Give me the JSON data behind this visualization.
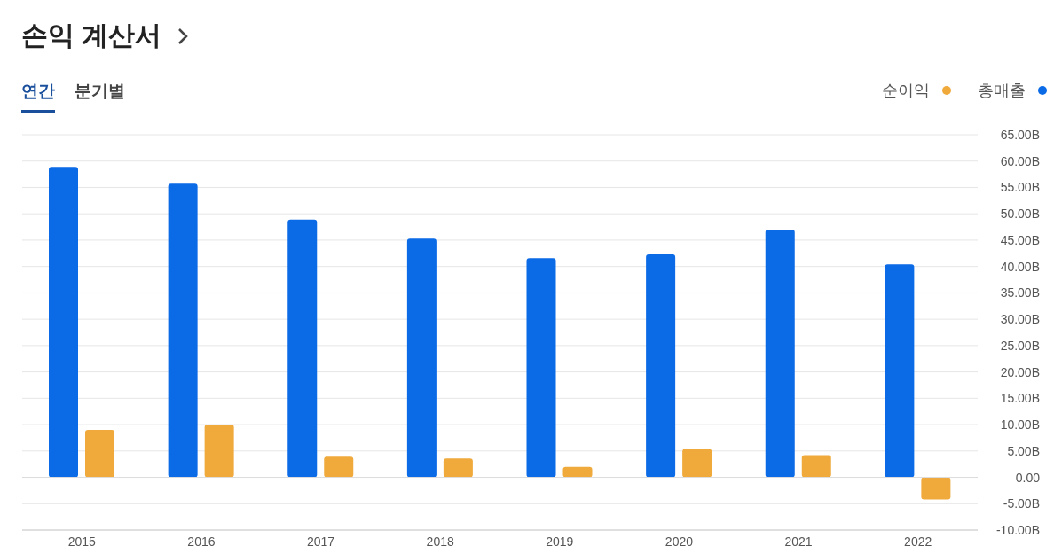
{
  "chart_data": {
    "type": "bar",
    "title": "손익 계산서",
    "annotations": [
      "연간",
      "분기별"
    ],
    "categories": [
      "2015",
      "2016",
      "2017",
      "2018",
      "2019",
      "2020",
      "2021",
      "2022"
    ],
    "series": [
      {
        "name": "총매출",
        "color": "#0b6ae6",
        "values": [
          58.9,
          55.7,
          48.9,
          45.3,
          41.6,
          42.3,
          47.0,
          40.4
        ]
      },
      {
        "name": "순이익",
        "color": "#f0aa3c",
        "values": [
          9.0,
          10.0,
          3.9,
          3.6,
          2.0,
          5.4,
          4.2,
          -4.2
        ]
      }
    ],
    "ylim": [
      -10,
      65
    ],
    "yticks": [
      {
        "value": -10,
        "label": "-10.00B"
      },
      {
        "value": -5,
        "label": "-5.00B"
      },
      {
        "value": 0,
        "label": "0.00"
      },
      {
        "value": 5,
        "label": "5.00B"
      },
      {
        "value": 10,
        "label": "10.00B"
      },
      {
        "value": 15,
        "label": "15.00B"
      },
      {
        "value": 20,
        "label": "20.00B"
      },
      {
        "value": 25,
        "label": "25.00B"
      },
      {
        "value": 30,
        "label": "30.00B"
      },
      {
        "value": 35,
        "label": "35.00B"
      },
      {
        "value": 40,
        "label": "40.00B"
      },
      {
        "value": 45,
        "label": "45.00B"
      },
      {
        "value": 50,
        "label": "50.00B"
      },
      {
        "value": 55,
        "label": "55.00B"
      },
      {
        "value": 60,
        "label": "60.00B"
      },
      {
        "value": 65,
        "label": "65.00B"
      }
    ],
    "grid": "y",
    "legend": "top right"
  }
}
